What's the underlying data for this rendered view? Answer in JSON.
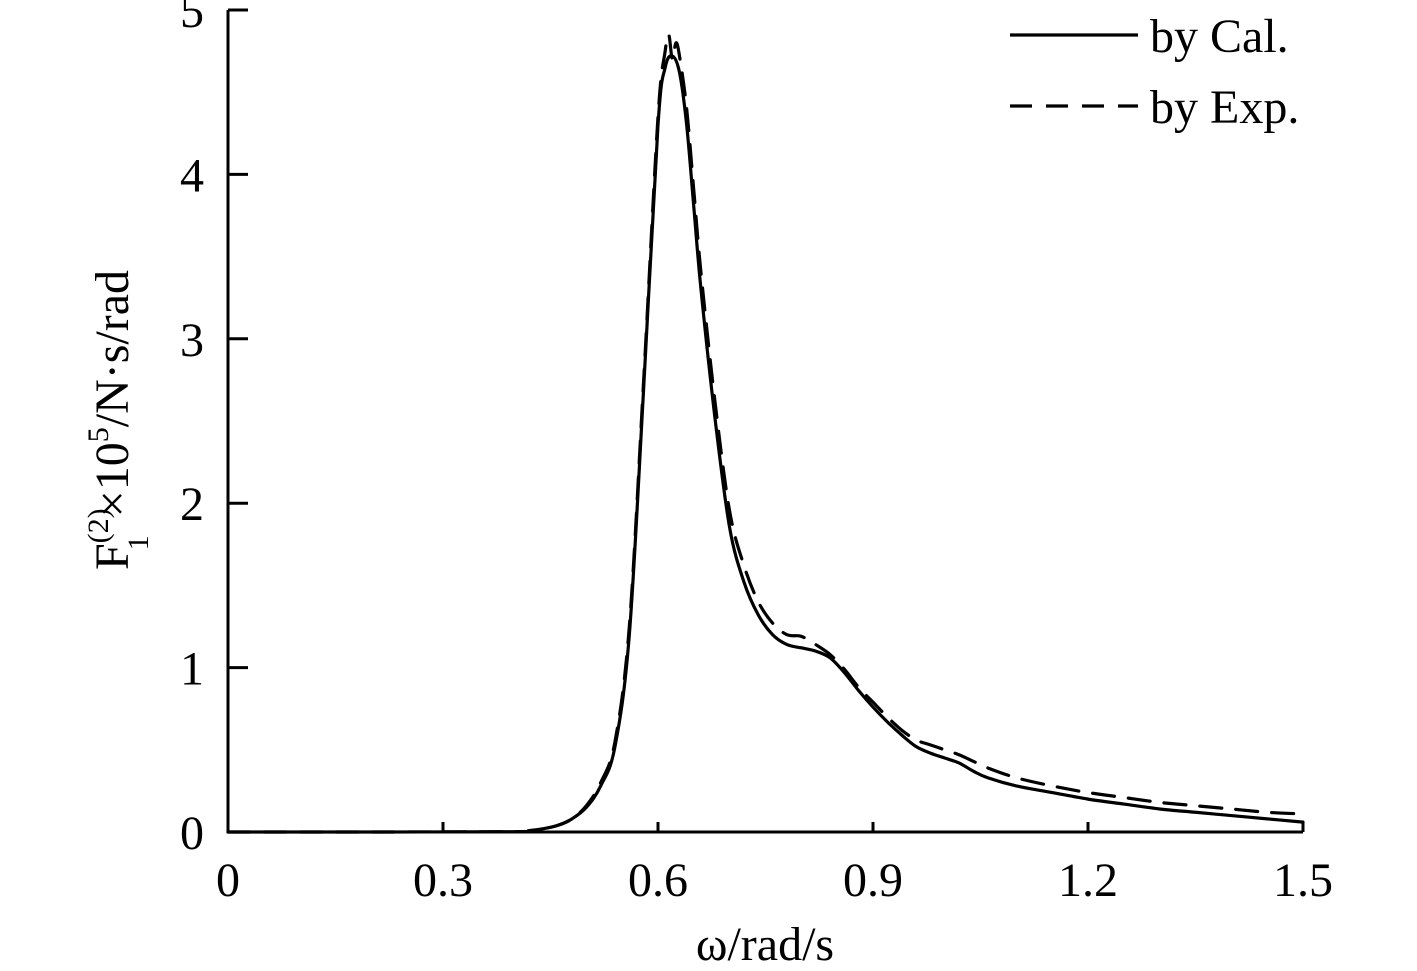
{
  "chart_data": {
    "type": "line",
    "title": "",
    "xlabel": "ω/rad/s",
    "ylabel": {
      "base": "F",
      "sup": "(2)",
      "sub": "1",
      "mid": "×10",
      "exp": "5",
      "unit": "/N·s/rad"
    },
    "xlim": [
      0,
      1.5
    ],
    "ylim": [
      0,
      5
    ],
    "xticks": [
      0,
      0.3,
      0.6,
      0.9,
      1.2,
      1.5
    ],
    "xtick_labels": [
      "0",
      "0.3",
      "0.6",
      "0.9",
      "1.2",
      "1.5"
    ],
    "yticks": [
      0,
      1,
      2,
      3,
      4,
      5
    ],
    "ytick_labels": [
      "0",
      "1",
      "2",
      "3",
      "4",
      "5"
    ],
    "grid": false,
    "legend_position": "top-right",
    "series": [
      {
        "name": "by Cal.",
        "style": "solid",
        "x": [
          0,
          0.2,
          0.4,
          0.42,
          0.44,
          0.46,
          0.48,
          0.5,
          0.52,
          0.54,
          0.56,
          0.58,
          0.6,
          0.61,
          0.62,
          0.63,
          0.64,
          0.65,
          0.66,
          0.68,
          0.7,
          0.72,
          0.74,
          0.76,
          0.78,
          0.8,
          0.82,
          0.84,
          0.86,
          0.88,
          0.9,
          0.92,
          0.94,
          0.96,
          0.98,
          1.0,
          1.02,
          1.04,
          1.06,
          1.1,
          1.15,
          1.2,
          1.25,
          1.3,
          1.35,
          1.4,
          1.45,
          1.5
        ],
        "y": [
          0,
          0,
          0.002,
          0.008,
          0.02,
          0.04,
          0.08,
          0.15,
          0.28,
          0.52,
          1.2,
          2.7,
          4.3,
          4.65,
          4.72,
          4.62,
          4.3,
          3.8,
          3.3,
          2.5,
          1.85,
          1.52,
          1.32,
          1.2,
          1.14,
          1.12,
          1.1,
          1.06,
          0.97,
          0.86,
          0.76,
          0.67,
          0.59,
          0.52,
          0.48,
          0.45,
          0.42,
          0.37,
          0.33,
          0.28,
          0.24,
          0.2,
          0.17,
          0.14,
          0.12,
          0.1,
          0.08,
          0.06
        ]
      },
      {
        "name": "by Exp.",
        "style": "dashed",
        "x": [
          0,
          0.2,
          0.4,
          0.42,
          0.44,
          0.46,
          0.48,
          0.5,
          0.52,
          0.54,
          0.56,
          0.58,
          0.6,
          0.61,
          0.615,
          0.62,
          0.625,
          0.63,
          0.64,
          0.65,
          0.66,
          0.68,
          0.7,
          0.72,
          0.74,
          0.76,
          0.78,
          0.8,
          0.82,
          0.84,
          0.86,
          0.88,
          0.9,
          0.92,
          0.94,
          0.96,
          0.98,
          1.0,
          1.02,
          1.04,
          1.06,
          1.1,
          1.15,
          1.2,
          1.25,
          1.3,
          1.35,
          1.4,
          1.45,
          1.5
        ],
        "y": [
          0,
          0,
          0.002,
          0.008,
          0.02,
          0.04,
          0.08,
          0.16,
          0.3,
          0.55,
          1.25,
          2.75,
          4.35,
          4.75,
          4.85,
          4.7,
          4.8,
          4.72,
          4.4,
          3.9,
          3.4,
          2.6,
          1.95,
          1.62,
          1.4,
          1.27,
          1.2,
          1.19,
          1.14,
          1.08,
          0.99,
          0.88,
          0.79,
          0.7,
          0.62,
          0.56,
          0.53,
          0.5,
          0.47,
          0.43,
          0.39,
          0.33,
          0.28,
          0.24,
          0.21,
          0.18,
          0.16,
          0.14,
          0.12,
          0.11
        ]
      }
    ]
  }
}
